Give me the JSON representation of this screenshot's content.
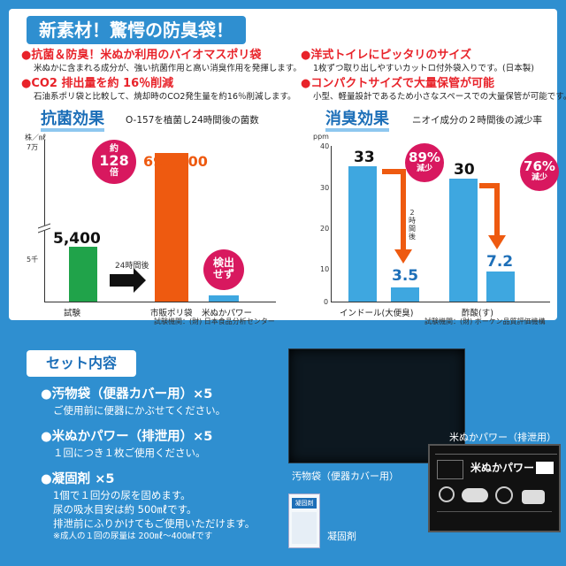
{
  "banner": "新素材！驚愕の防臭袋！",
  "features": [
    {
      "title": "●抗菌＆防臭！米ぬか利用のバイオマスポリ袋",
      "desc": "米ぬかに含まれる成分が、強い抗菌作用と高い消臭作用を発揮します。"
    },
    {
      "title": "●CO2 排出量を約 16％削減",
      "desc": "石油系ポリ袋と比較して、焼却時のCO2発生量を約16％削減します。"
    },
    {
      "title": "●洋式トイレにピッタリのサイズ",
      "desc": "1枚ずつ取り出しやすいカットロ付外袋入りです。(日本製)"
    },
    {
      "title": "●コンパクトサイズで大量保管が可能",
      "desc": "小型、軽量設計であるため小さなスペースでの大量保管が可能です。"
    }
  ],
  "antibac": {
    "title": "抗菌効果",
    "subtitle": "O-157を植菌し24時間後の菌数",
    "unit": "株／㎖",
    "tick_top": "7万",
    "tick_mid": "5千",
    "after_label": "24時間後",
    "times_label": [
      "約",
      "128",
      "倍"
    ],
    "badge": [
      "検出",
      "せず"
    ],
    "source": "試験機関：(財) 日本食品分析センター",
    "colors": {
      "test": "#20a34a",
      "market": "#ee5a10",
      "komenuka": "#3ea7e0",
      "badge": "#d8185f"
    }
  },
  "deodor": {
    "title": "消臭効果",
    "subtitle": "ニオイ成分の２時間後の減少率",
    "unit": "ppm",
    "after_label": [
      "2",
      "時",
      "間",
      "後"
    ],
    "badges": [
      {
        "pct": "89%",
        "word": "減少"
      },
      {
        "pct": "76%",
        "word": "減少"
      }
    ],
    "source": "試験機関：(財) ボーケン品質評価機構",
    "colors": {
      "bar": "#3ea7e0",
      "arrow": "#ee5a10",
      "badge": "#d8185f"
    }
  },
  "chart_data": [
    {
      "type": "bar",
      "title": "抗菌効果",
      "subtitle": "O-157を植菌し24時間後の菌数",
      "ylabel": "株／㎖",
      "categories": [
        "試験",
        "市販ポリ袋",
        "米ぬかパワー"
      ],
      "values": [
        5400,
        690000,
        0
      ],
      "data_labels": [
        "5,400",
        "690,000",
        "検出せず"
      ],
      "y_ticks": [
        "5千",
        "7万"
      ],
      "axis_break": true
    },
    {
      "type": "bar",
      "title": "消臭効果",
      "subtitle": "ニオイ成分の２時間後の減少率",
      "ylabel": "ppm",
      "ylim": [
        0,
        40
      ],
      "y_ticks": [
        0,
        10,
        20,
        30,
        40
      ],
      "categories": [
        "インドール(大便臭)",
        "酢酸(す)"
      ],
      "series": [
        {
          "values": [
            33,
            30
          ]
        },
        {
          "values": [
            3.5,
            7.2
          ]
        }
      ],
      "data_labels": [
        [
          "33",
          "3.5"
        ],
        [
          "30",
          "7.2"
        ]
      ],
      "annotations": [
        "89%減少",
        "76%減少",
        "2時間後"
      ]
    }
  ],
  "set": {
    "title": "セット内容",
    "items": [
      {
        "title": "●汚物袋（便器カバー用）×5",
        "lines": [
          "ご使用前に便器にかぶせてください。"
        ]
      },
      {
        "title": "●米ぬかパワー（排泄用）×5",
        "lines": [
          "１回につき１枚ご使用ください。"
        ]
      },
      {
        "title": "●凝固剤 ×5",
        "lines": [
          "1個で１回分の尿を固めます。",
          "尿の吸水目安は約 500㎖です。",
          "排泄前にふりかけてもご使用いただけます。"
        ],
        "note": "※成人の１回の尿量は 200㎖～400㎖です"
      }
    ]
  },
  "captions": {
    "bag": "汚物袋（便器カバー用）",
    "komenuka": "米ぬかパワー（排泄用）",
    "gel": "凝固剤",
    "gel_packet": "凝固剤",
    "pkg_title": "米ぬかパワー"
  }
}
